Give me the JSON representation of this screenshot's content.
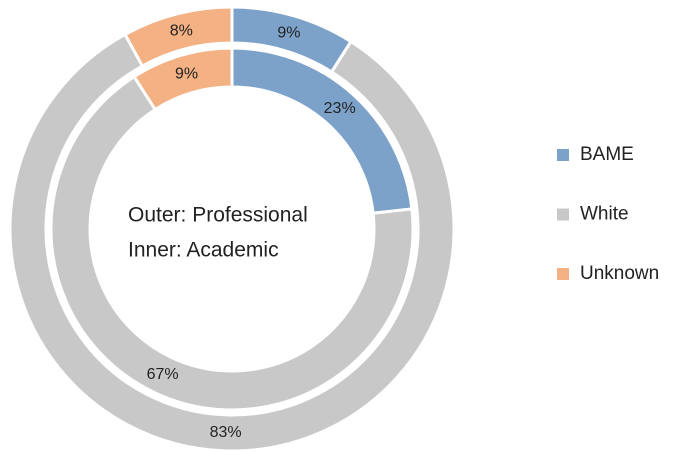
{
  "chart_data": {
    "type": "doughnut",
    "categories": [
      "BAME",
      "White",
      "Unknown"
    ],
    "colors": [
      "#7da2c9",
      "#c8c8c8",
      "#f4b183"
    ],
    "series": [
      {
        "values": [
          9,
          83,
          8
        ],
        "value_labels": [
          "9%",
          "83%",
          "8%"
        ]
      },
      {
        "values": [
          23,
          67,
          9
        ],
        "value_labels": [
          "23%",
          "67%",
          "9%"
        ]
      }
    ],
    "annotations": [
      "Outer: Professional",
      "Inner: Academic"
    ],
    "legend": "right"
  }
}
